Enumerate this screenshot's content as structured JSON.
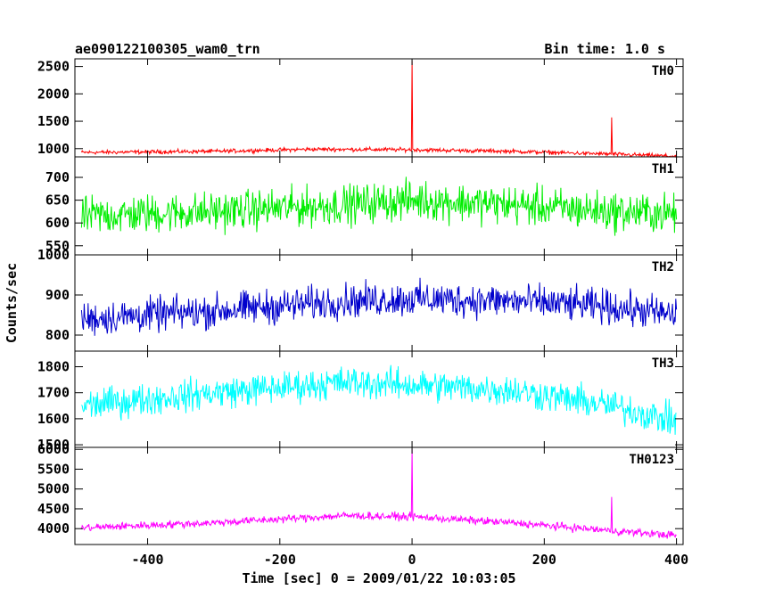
{
  "chart_data": {
    "type": "line",
    "title": "ae090122100305_wam0_trn",
    "subtitle": "Bin time: 1.0 s",
    "xlabel": "Time [sec] 0 = 2009/01/22 10:03:05",
    "ylabel": "Counts/sec",
    "xlim": [
      -510,
      410
    ],
    "x_ticks": [
      -400,
      -200,
      0,
      200,
      400
    ],
    "panels": [
      {
        "name": "TH0",
        "color": "#ff0000",
        "ylim": [
          850,
          2640
        ],
        "y_ticks": [
          1000,
          1500,
          2000,
          2500
        ],
        "baseline": [
          [
            -500,
            930
          ],
          [
            -300,
            950
          ],
          [
            -150,
            990
          ],
          [
            0,
            980
          ],
          [
            150,
            950
          ],
          [
            300,
            900
          ],
          [
            400,
            860
          ]
        ],
        "noise": 30,
        "spikes": [
          {
            "x": 0,
            "y": 2600
          },
          {
            "x": 302,
            "y": 1570
          }
        ]
      },
      {
        "name": "TH1",
        "color": "#00ee00",
        "ylim": [
          530,
          745
        ],
        "y_ticks": [
          550,
          600,
          650,
          700
        ],
        "baseline": [
          [
            -500,
            615
          ],
          [
            -300,
            625
          ],
          [
            -100,
            640
          ],
          [
            0,
            650
          ],
          [
            150,
            640
          ],
          [
            300,
            625
          ],
          [
            400,
            620
          ]
        ],
        "noise": 35,
        "spikes": []
      },
      {
        "name": "TH2",
        "color": "#0000cc",
        "ylim": [
          760,
          1000
        ],
        "y_ticks": [
          800,
          900,
          1000
        ],
        "baseline": [
          [
            -500,
            840
          ],
          [
            -300,
            860
          ],
          [
            -100,
            885
          ],
          [
            0,
            890
          ],
          [
            150,
            885
          ],
          [
            300,
            870
          ],
          [
            400,
            850
          ]
        ],
        "noise": 35,
        "spikes": []
      },
      {
        "name": "TH3",
        "color": "#00ffff",
        "ylim": [
          1490,
          1860
        ],
        "y_ticks": [
          1500,
          1600,
          1700,
          1800
        ],
        "baseline": [
          [
            -500,
            1650
          ],
          [
            -300,
            1700
          ],
          [
            -100,
            1740
          ],
          [
            0,
            1730
          ],
          [
            150,
            1710
          ],
          [
            300,
            1650
          ],
          [
            400,
            1590
          ]
        ],
        "noise": 50,
        "spikes": []
      },
      {
        "name": "TH0123",
        "color": "#ff00ff",
        "ylim": [
          3600,
          6050
        ],
        "y_ticks": [
          4000,
          4500,
          5000,
          5500,
          6000
        ],
        "baseline": [
          [
            -500,
            4020
          ],
          [
            -300,
            4150
          ],
          [
            -100,
            4330
          ],
          [
            0,
            4300
          ],
          [
            150,
            4150
          ],
          [
            300,
            3950
          ],
          [
            400,
            3830
          ]
        ],
        "noise": 80,
        "spikes": [
          {
            "x": 0,
            "y": 6000
          },
          {
            "x": 302,
            "y": 4800
          }
        ]
      }
    ]
  }
}
